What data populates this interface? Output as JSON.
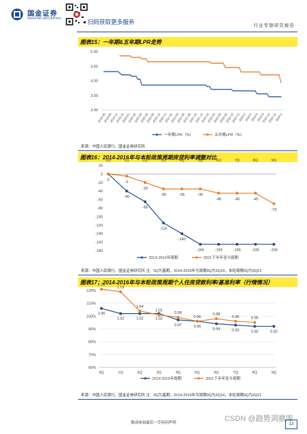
{
  "header": {
    "logo_name": "国金证券",
    "logo_sub": "SINOLINK SECURITIES",
    "scan_text": "扫码获取更多服务",
    "report_type": "行业专题研究报告"
  },
  "charts": [
    {
      "title": "图表15：一年期&五年期LPR走势",
      "source": "来源：中国人民银行，国金证券研究所"
    },
    {
      "title": "图表16：2014-2016年与本轮政策周期房贷利率调整对比",
      "source": "来源：中国人民银行，国金证券研究所 注：0Q为基期，2014-2016年为周期0Q为3Q14，本轮周期0Q为3Q21"
    },
    {
      "title": "图表17：2014-2016年与本轮政策周期个人住房贷款利率/基准利率（行情情况）",
      "source": "来源：中国人民银行，国金证券研究所 注：0Q为基期，2014-2016年为周期0Q为3Q14，本轮周期0Q为3Q21"
    }
  ],
  "chart_data": [
    {
      "type": "line",
      "ylim": [
        3.0,
        5.0
      ],
      "yticks": [
        "5.00",
        "4.50",
        "4.00",
        "3.50",
        "3.00"
      ],
      "xticks": [
        "2019-08",
        "2019-09",
        "2019-11",
        "2019-12",
        "2020-01",
        "2020-02",
        "2020-04",
        "2020-06",
        "2020-08",
        "2020-10",
        "2020-12",
        "2021-02",
        "2021-04",
        "2021-06",
        "2021-08",
        "2021-10",
        "2021-12",
        "2022-02",
        "2022-04",
        "2022-06",
        "2022-08",
        "2022-10",
        "2022-12",
        "2023-2",
        "2023-4",
        "2023-6",
        "2023-8",
        "2023-10",
        "2023-12",
        "2024-2"
      ],
      "series": [
        {
          "name": "一年期LPR（%）",
          "color": "#2b5aa5",
          "values": [
            4.31,
            4.31,
            4.31,
            4.31,
            4.31,
            4.31,
            4.31,
            4.31,
            4.25,
            4.2,
            4.2,
            4.2,
            4.2,
            4.2,
            4.15,
            4.15,
            4.15,
            4.05,
            4.05,
            3.85,
            3.85,
            3.85,
            3.85,
            3.85,
            3.85,
            3.85,
            3.85,
            3.85,
            3.85,
            3.85,
            3.85,
            3.85,
            3.85,
            3.85,
            3.85,
            3.85,
            3.85,
            3.85,
            3.85,
            3.85,
            3.85,
            3.85,
            3.85,
            3.85,
            3.85,
            3.85,
            3.85,
            3.85,
            3.85,
            3.85,
            3.85,
            3.85,
            3.8,
            3.8,
            3.7,
            3.7,
            3.7,
            3.7,
            3.7,
            3.7,
            3.7,
            3.7,
            3.7,
            3.7,
            3.7,
            3.65,
            3.65,
            3.65,
            3.65,
            3.65,
            3.65,
            3.65,
            3.65,
            3.65,
            3.65,
            3.65,
            3.65,
            3.55,
            3.55,
            3.55,
            3.55,
            3.55,
            3.55,
            3.45,
            3.45,
            3.45,
            3.45,
            3.45,
            3.45,
            3.45
          ]
        },
        {
          "name": "五年期LPR（%）",
          "color": "#e87d2a",
          "values": [
            null,
            null,
            null,
            null,
            null,
            null,
            null,
            null,
            4.85,
            4.85,
            4.85,
            4.85,
            4.85,
            4.85,
            4.8,
            4.8,
            4.8,
            4.8,
            4.8,
            4.75,
            4.75,
            4.75,
            4.65,
            4.65,
            4.65,
            4.65,
            4.65,
            4.65,
            4.65,
            4.65,
            4.65,
            4.65,
            4.65,
            4.65,
            4.65,
            4.65,
            4.65,
            4.65,
            4.65,
            4.65,
            4.65,
            4.65,
            4.65,
            4.65,
            4.65,
            4.65,
            4.65,
            4.65,
            4.65,
            4.65,
            4.65,
            4.65,
            4.65,
            4.65,
            4.6,
            4.6,
            4.6,
            4.6,
            4.6,
            4.6,
            4.6,
            4.45,
            4.45,
            4.45,
            4.45,
            4.45,
            4.45,
            4.45,
            4.45,
            4.3,
            4.3,
            4.3,
            4.3,
            4.3,
            4.3,
            4.3,
            4.3,
            4.3,
            4.3,
            4.2,
            4.2,
            4.2,
            4.2,
            4.2,
            4.2,
            4.2,
            4.2,
            4.2,
            4.2,
            3.95
          ]
        }
      ]
    },
    {
      "type": "line",
      "ylim": [
        -180,
        20
      ],
      "yticks": [
        "20",
        "0",
        "-20",
        "-40",
        "-60",
        "-80",
        "-100",
        "-120",
        "-140",
        "-160",
        "-180"
      ],
      "categories": [
        "0Q",
        "1Q",
        "2Q",
        "3Q",
        "4Q",
        "5Q",
        "6Q",
        "7Q",
        "8Q",
        "9Q"
      ],
      "series": [
        {
          "name": "2014-2016年周期",
          "color": "#1f4f8c",
          "values": [
            0,
            -40,
            -65,
            -115,
            -140,
            -165,
            -165,
            -165,
            -165,
            -165
          ],
          "labels": [
            "0",
            "-40",
            "-65",
            "-115",
            "-140",
            "-165",
            "-165",
            "-165",
            "-165",
            "-165"
          ]
        },
        {
          "name": "2021下半年至今周期",
          "color": "#e87d2a",
          "values": [
            0,
            -5,
            -20,
            -35,
            -35,
            -35,
            -45,
            -45,
            -45,
            -70
          ],
          "labels": [
            "0",
            "-5",
            "-20",
            "-35",
            "-35",
            "-35",
            "-45",
            "-45",
            "-45",
            "-70"
          ]
        }
      ]
    },
    {
      "type": "line",
      "ylim": [
        0.6,
        1.2
      ],
      "yticks": [
        "120%",
        "110%",
        "100%",
        "90%",
        "80%",
        "70%",
        "60%"
      ],
      "categories": [
        "0Q",
        "1Q",
        "2Q",
        "3Q",
        "4Q",
        "5Q",
        "6Q",
        "7Q",
        "8Q",
        "9Q"
      ],
      "series": [
        {
          "name": "2014-2016年周期",
          "color": "#1f4f8c",
          "values": [
            1.06,
            1.02,
            1.02,
            1.02,
            0.97,
            0.96,
            0.94,
            0.93,
            0.92,
            0.92
          ],
          "labels": [
            "1.06",
            "1.02",
            "1.02",
            "1.02",
            "0.97",
            "0.96",
            "0.94",
            "0.93",
            "0.92",
            "0.92"
          ]
        },
        {
          "name": "2021下半年至今周期",
          "color": "#e87d2a",
          "values": [
            1.21,
            1.19,
            1.04,
            1.01,
            0.99,
            0.96,
            0.98,
            0.96,
            0.95,
            null
          ],
          "labels": [
            "1.21",
            "1.19",
            "1.04",
            "1.01",
            "0.99",
            "0.96",
            "0.98",
            "0.96",
            "0.95",
            ""
          ]
        }
      ]
    }
  ],
  "footer": {
    "disclaimer": "敬请参阅最后一页特别声明",
    "page": "13",
    "watermark": "CSDN @趋势洞察库"
  }
}
